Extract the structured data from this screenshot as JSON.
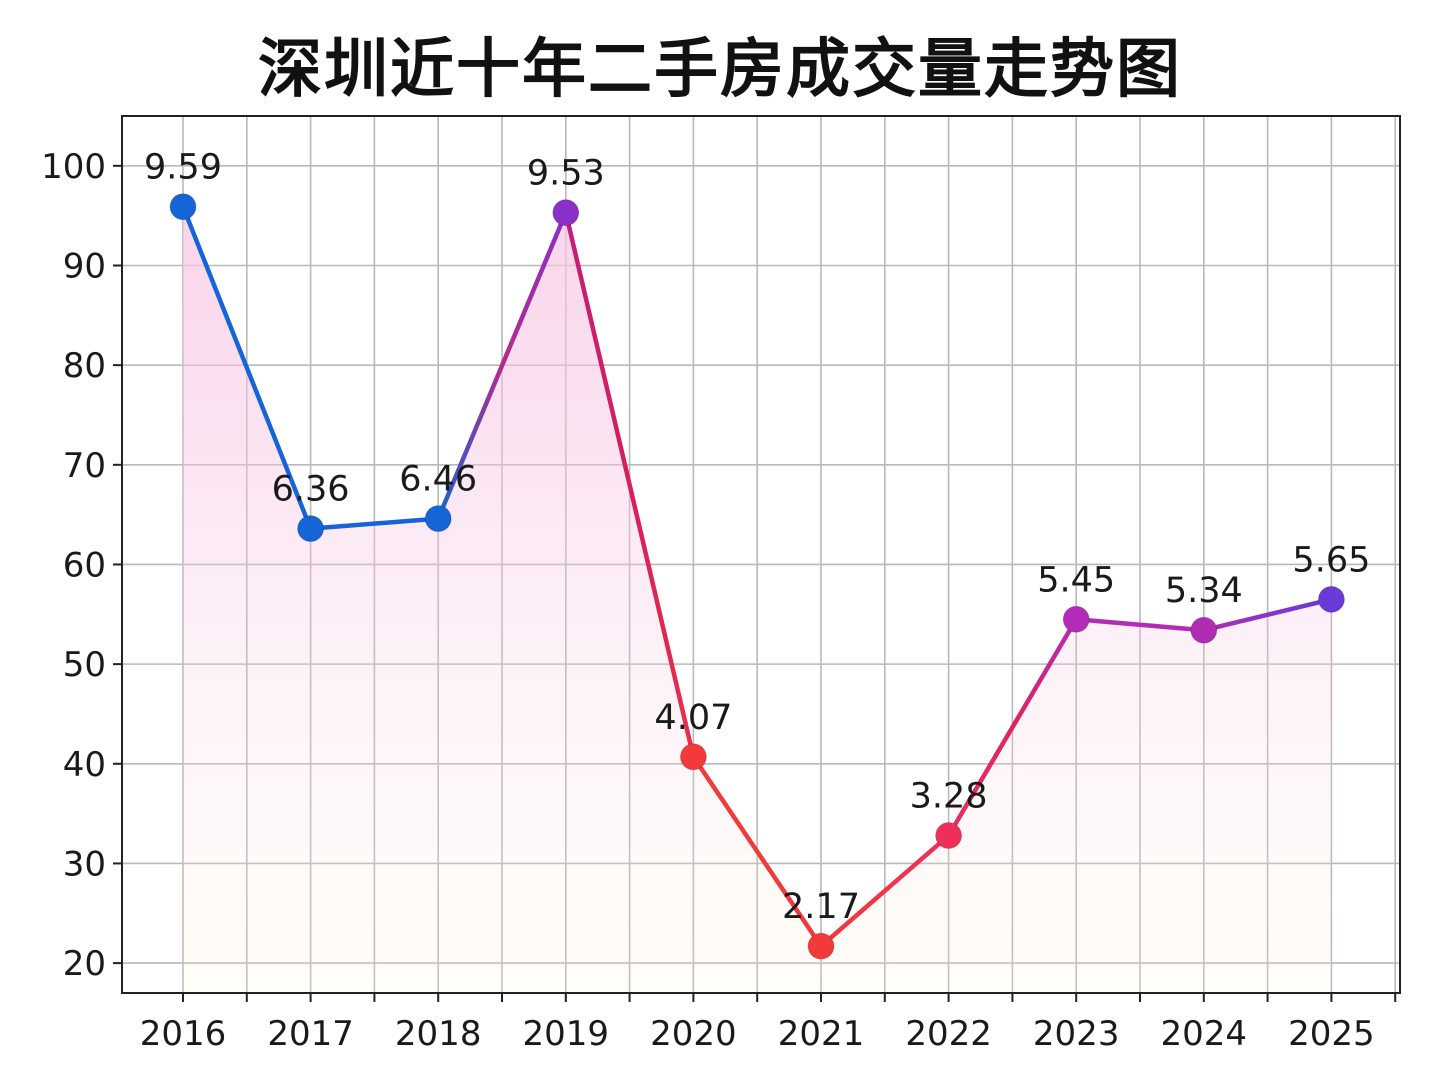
{
  "chart_data": {
    "type": "line",
    "title": "深圳近十年二手房成交量走势图",
    "xlabel": "",
    "ylabel": "",
    "categories": [
      "2016",
      "2017",
      "2018",
      "2019",
      "2020",
      "2021",
      "2022",
      "2023",
      "2024",
      "2025"
    ],
    "values": [
      95.9,
      63.6,
      64.6,
      95.3,
      40.7,
      21.7,
      32.8,
      54.5,
      53.4,
      56.5
    ],
    "data_labels": [
      "9.59",
      "6.36",
      "6.46",
      "9.53",
      "4.07",
      "2.17",
      "3.28",
      "5.45",
      "5.34",
      "5.65"
    ],
    "yticks": [
      "20",
      "30",
      "40",
      "50",
      "60",
      "70",
      "80",
      "90",
      "100"
    ],
    "ylim": [
      17,
      105
    ],
    "grid": true,
    "legend": "none",
    "point_colors": [
      "#1565d8",
      "#1565d8",
      "#1565d8",
      "#8a2fc8",
      "#f23a3a",
      "#f23a3a",
      "#ee2f5a",
      "#b32bb8",
      "#b02cb0",
      "#6a3ad8"
    ],
    "area_color": "#f7c6e4"
  }
}
